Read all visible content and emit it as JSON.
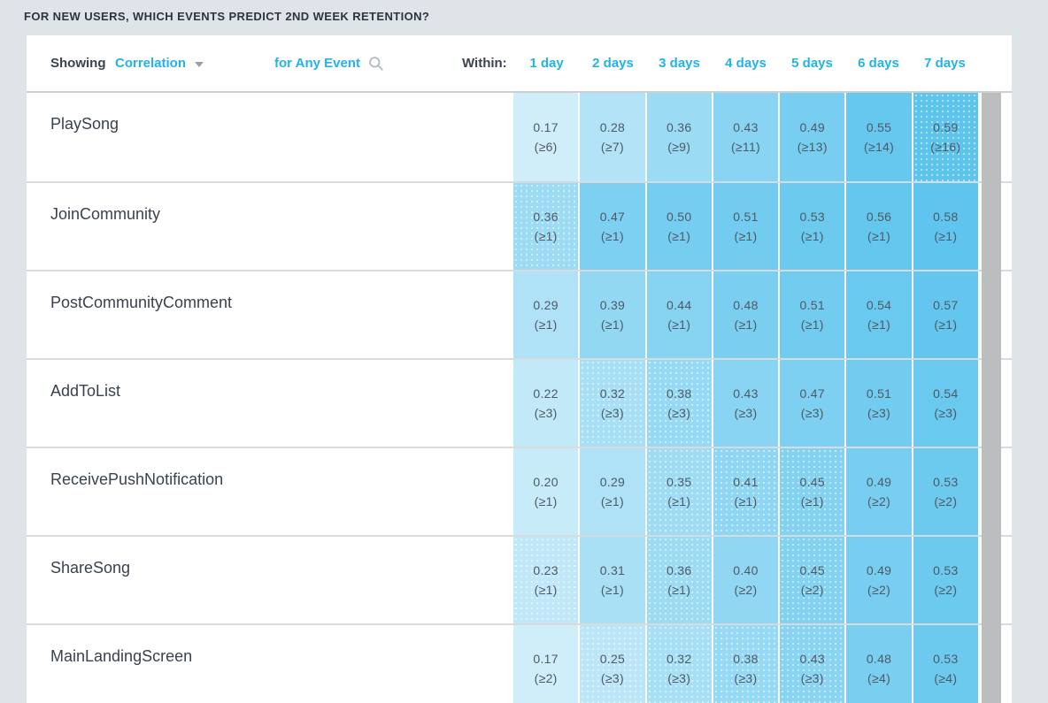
{
  "page": {
    "title": "FOR NEW USERS, WHICH EVENTS PREDICT 2ND WEEK RETENTION?"
  },
  "toolbar": {
    "showing_label": "Showing",
    "metric_selector": "Correlation",
    "event_selector": "for Any Event",
    "within_label": "Within:",
    "day_columns": [
      "1 day",
      "2 days",
      "3 days",
      "4 days",
      "5 days",
      "6 days",
      "7 days"
    ]
  },
  "theme": {
    "accent_blue": "#23b2e9",
    "page_bg": "#dfe4e9",
    "card_bg": "#ffffff",
    "title_color": "#2d3440",
    "cell_text_color": "#4e5965",
    "separator_color": "#d9dadb",
    "scrollbar_color": "#bcbdbe",
    "cell_base_rgb": [
      41,
      178,
      232
    ],
    "cell_shade_factor": 1.29
  },
  "icons": {
    "metric_caret": "chevron-down-icon",
    "event_search": "search-icon"
  },
  "table": {
    "rows": [
      {
        "label": "PlaySong",
        "cells": [
          {
            "value": "0.17",
            "min": 6,
            "dotted": false
          },
          {
            "value": "0.28",
            "min": 7,
            "dotted": false
          },
          {
            "value": "0.36",
            "min": 9,
            "dotted": false
          },
          {
            "value": "0.43",
            "min": 11,
            "dotted": false
          },
          {
            "value": "0.49",
            "min": 13,
            "dotted": false
          },
          {
            "value": "0.55",
            "min": 14,
            "dotted": false
          },
          {
            "value": "0.59",
            "min": 16,
            "dotted": true
          }
        ]
      },
      {
        "label": "JoinCommunity",
        "cells": [
          {
            "value": "0.36",
            "min": 1,
            "dotted": true
          },
          {
            "value": "0.47",
            "min": 1,
            "dotted": false
          },
          {
            "value": "0.50",
            "min": 1,
            "dotted": false
          },
          {
            "value": "0.51",
            "min": 1,
            "dotted": false
          },
          {
            "value": "0.53",
            "min": 1,
            "dotted": false
          },
          {
            "value": "0.56",
            "min": 1,
            "dotted": false
          },
          {
            "value": "0.58",
            "min": 1,
            "dotted": false
          }
        ]
      },
      {
        "label": "PostCommunityComment",
        "cells": [
          {
            "value": "0.29",
            "min": 1,
            "dotted": false
          },
          {
            "value": "0.39",
            "min": 1,
            "dotted": false
          },
          {
            "value": "0.44",
            "min": 1,
            "dotted": false
          },
          {
            "value": "0.48",
            "min": 1,
            "dotted": false
          },
          {
            "value": "0.51",
            "min": 1,
            "dotted": false
          },
          {
            "value": "0.54",
            "min": 1,
            "dotted": false
          },
          {
            "value": "0.57",
            "min": 1,
            "dotted": false
          }
        ]
      },
      {
        "label": "AddToList",
        "cells": [
          {
            "value": "0.22",
            "min": 3,
            "dotted": false
          },
          {
            "value": "0.32",
            "min": 3,
            "dotted": true
          },
          {
            "value": "0.38",
            "min": 3,
            "dotted": true
          },
          {
            "value": "0.43",
            "min": 3,
            "dotted": false
          },
          {
            "value": "0.47",
            "min": 3,
            "dotted": false
          },
          {
            "value": "0.51",
            "min": 3,
            "dotted": false
          },
          {
            "value": "0.54",
            "min": 3,
            "dotted": false
          }
        ]
      },
      {
        "label": "ReceivePushNotification",
        "cells": [
          {
            "value": "0.20",
            "min": 1,
            "dotted": false
          },
          {
            "value": "0.29",
            "min": 1,
            "dotted": false
          },
          {
            "value": "0.35",
            "min": 1,
            "dotted": true
          },
          {
            "value": "0.41",
            "min": 1,
            "dotted": true
          },
          {
            "value": "0.45",
            "min": 1,
            "dotted": true
          },
          {
            "value": "0.49",
            "min": 2,
            "dotted": false
          },
          {
            "value": "0.53",
            "min": 2,
            "dotted": false
          }
        ]
      },
      {
        "label": "ShareSong",
        "cells": [
          {
            "value": "0.23",
            "min": 1,
            "dotted": true
          },
          {
            "value": "0.31",
            "min": 1,
            "dotted": false
          },
          {
            "value": "0.36",
            "min": 1,
            "dotted": true
          },
          {
            "value": "0.40",
            "min": 2,
            "dotted": false
          },
          {
            "value": "0.45",
            "min": 2,
            "dotted": true
          },
          {
            "value": "0.49",
            "min": 2,
            "dotted": false
          },
          {
            "value": "0.53",
            "min": 2,
            "dotted": false
          }
        ]
      },
      {
        "label": "MainLandingScreen",
        "cells": [
          {
            "value": "0.17",
            "min": 2,
            "dotted": false
          },
          {
            "value": "0.25",
            "min": 3,
            "dotted": true
          },
          {
            "value": "0.32",
            "min": 3,
            "dotted": true
          },
          {
            "value": "0.38",
            "min": 3,
            "dotted": true
          },
          {
            "value": "0.43",
            "min": 3,
            "dotted": true
          },
          {
            "value": "0.48",
            "min": 4,
            "dotted": false
          },
          {
            "value": "0.53",
            "min": 4,
            "dotted": false
          }
        ]
      }
    ]
  }
}
